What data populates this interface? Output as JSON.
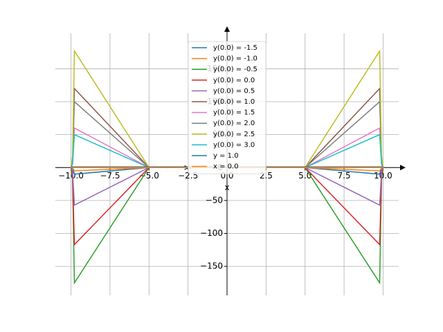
{
  "chart_data": {
    "type": "line",
    "x_label": "x",
    "y_label": "y",
    "x": [
      -10,
      -9.9,
      -9.78,
      -5,
      0,
      5,
      9.78,
      9.9,
      10
    ],
    "series": [
      {
        "name": "y(0.0) = -1.5",
        "color": "#1f77b4",
        "values": [
          0,
          -1,
          -10,
          0,
          0,
          0,
          -10,
          -1,
          0
        ]
      },
      {
        "name": "y(0.0) = -1.0",
        "color": "#ff7f0e",
        "values": [
          0,
          -0.5,
          -5,
          0,
          0,
          0,
          -5,
          -0.5,
          0
        ]
      },
      {
        "name": "y(0.0) = -0.5",
        "color": "#2ca02c",
        "values": [
          0,
          -17,
          -175,
          0,
          0,
          0,
          -175,
          -17,
          0
        ]
      },
      {
        "name": "y(0.0) = 0.0",
        "color": "#d62728",
        "values": [
          0,
          -12,
          -117,
          0,
          0,
          0,
          -117,
          -12,
          0
        ]
      },
      {
        "name": "y(0.0) = 0.5",
        "color": "#9467bd",
        "values": [
          0,
          -6,
          -57,
          0,
          0,
          0,
          -57,
          -6,
          0
        ]
      },
      {
        "name": "y(0.0) = 1.0",
        "color": "#8c564b",
        "values": [
          0,
          12,
          120,
          0,
          0,
          0,
          120,
          12,
          0
        ]
      },
      {
        "name": "y(0.0) = 1.5",
        "color": "#e377c2",
        "values": [
          0,
          6,
          60,
          0,
          0,
          0,
          60,
          6,
          0
        ]
      },
      {
        "name": "y(0.0) = 2.0",
        "color": "#7f7f7f",
        "values": [
          0,
          10,
          100,
          0,
          0,
          0,
          100,
          10,
          0
        ]
      },
      {
        "name": "y(0.0) = 2.5",
        "color": "#bcbd22",
        "values": [
          0,
          18,
          177,
          0,
          0,
          0,
          177,
          18,
          0
        ]
      },
      {
        "name": "y(0.0) = 3.0",
        "color": "#17becf",
        "values": [
          0,
          5,
          50,
          0,
          0,
          0,
          50,
          5,
          0
        ]
      },
      {
        "name": "y = 1.0",
        "color": "#1f77b4",
        "values": [
          1,
          1,
          1,
          1,
          1,
          1,
          1,
          1,
          1
        ]
      },
      {
        "name": "x = 0.0",
        "color": "#ff7f0e",
        "values": [
          0,
          0,
          0,
          0,
          0,
          0,
          0,
          0,
          0
        ]
      }
    ],
    "xlim": [
      -11,
      11
    ],
    "ylim": [
      -194,
      204
    ],
    "xticks": [
      {
        "value": -10,
        "label": "−10.0"
      },
      {
        "value": -7.5,
        "label": "−7.5"
      },
      {
        "value": -5,
        "label": "−5.0"
      },
      {
        "value": -2.5,
        "label": "−2.5"
      },
      {
        "value": 0,
        "label": "0.0"
      },
      {
        "value": 2.5,
        "label": "2.5"
      },
      {
        "value": 5,
        "label": "5.0"
      },
      {
        "value": 7.5,
        "label": "7.5"
      },
      {
        "value": 10,
        "label": "10.0"
      }
    ],
    "yticks": [
      {
        "value": -150,
        "label": "−150"
      },
      {
        "value": -100,
        "label": "−100"
      },
      {
        "value": -50,
        "label": "−50"
      },
      0,
      50,
      100,
      150
    ],
    "grid": true,
    "legend": "upper center"
  }
}
